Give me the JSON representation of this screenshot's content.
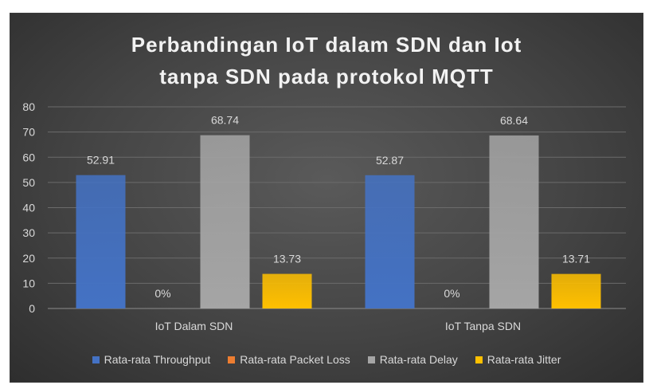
{
  "chart_data": {
    "type": "bar",
    "title_lines": [
      "Perbandingan IoT dalam SDN dan Iot",
      "tanpa SDN pada protokol MQTT"
    ],
    "categories": [
      "IoT Dalam SDN",
      "IoT Tanpa SDN"
    ],
    "ylim": [
      0,
      80
    ],
    "yticks": [
      0,
      10,
      20,
      30,
      40,
      50,
      60,
      70,
      80
    ],
    "grid": true,
    "legend_position": "bottom",
    "series": [
      {
        "name": "Rata-rata Throughput",
        "values": [
          52.91,
          52.87
        ],
        "labels": [
          "52.91",
          "52.87"
        ],
        "color": "#4472c4"
      },
      {
        "name": "Rata-rata Packet Loss",
        "values": [
          0,
          0
        ],
        "labels": [
          "0%",
          "0%"
        ],
        "color": "#ed7d31"
      },
      {
        "name": "Rata-rata Delay",
        "values": [
          68.74,
          68.64
        ],
        "labels": [
          "68.74",
          "68.64"
        ],
        "color": "#a5a5a5"
      },
      {
        "name": "Rata-rata Jitter",
        "values": [
          13.73,
          13.71
        ],
        "labels": [
          "13.73",
          "13.71"
        ],
        "color": "#ffc000"
      }
    ]
  }
}
